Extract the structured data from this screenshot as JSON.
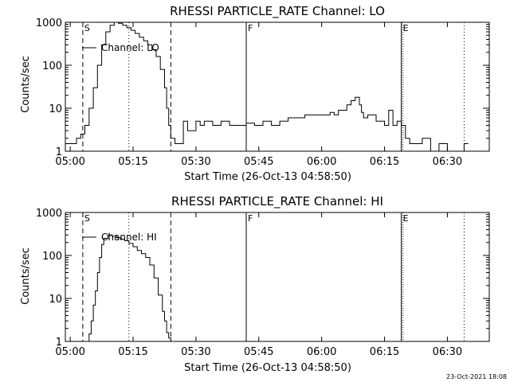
{
  "footer_stamp": "23-Oct-2021 18:08",
  "chart_data": [
    {
      "type": "line",
      "title": "RHESSI PARTICLE_RATE Channel: LO",
      "xlabel": "Start Time (26-Oct-13 04:58:50)",
      "ylabel": "Counts/sec",
      "ylog": true,
      "xlim": [
        "04:58:50",
        "06:40:00"
      ],
      "ylim": [
        1,
        1000
      ],
      "xticks": [
        "05:00",
        "05:15",
        "05:30",
        "05:45",
        "06:00",
        "06:15",
        "06:30"
      ],
      "yticks": [
        "1",
        "10",
        "100",
        "1000"
      ],
      "legend": "Channel: LO",
      "markers": [
        {
          "label": "S",
          "time": "05:03",
          "style": "dashed"
        },
        {
          "label": "",
          "time": "05:14",
          "style": "dotted"
        },
        {
          "label": "",
          "time": "05:24",
          "style": "dashed"
        },
        {
          "label": "F",
          "time": "05:42",
          "style": "solid"
        },
        {
          "label": "E",
          "time": "06:19",
          "style": "dotted-solid"
        },
        {
          "label": "",
          "time": "06:34",
          "style": "dotted"
        }
      ],
      "series": [
        {
          "name": "Channel: LO",
          "x": [
            "04:58:50",
            "05:00:00",
            "05:01:30",
            "05:02:30",
            "05:03:30",
            "05:04:30",
            "05:05:30",
            "05:06:30",
            "05:07:30",
            "05:08:30",
            "05:09:30",
            "05:10:30",
            "05:11:30",
            "05:12:30",
            "05:13:30",
            "05:14:30",
            "05:15:30",
            "05:16:30",
            "05:17:30",
            "05:18:30",
            "05:19:30",
            "05:20:30",
            "05:21:30",
            "05:22:30",
            "05:23:00",
            "05:23:30",
            "05:24:00",
            "05:24:30",
            "05:25:00",
            "05:26:00",
            "05:27:00",
            "05:28:00",
            "05:30:00",
            "05:31:00",
            "05:32:00",
            "05:34:00",
            "05:36:00",
            "05:38:00",
            "05:40:00",
            "05:42:00",
            "05:44:00",
            "05:46:00",
            "05:48:00",
            "05:50:00",
            "05:52:00",
            "05:54:00",
            "05:56:00",
            "05:58:00",
            "06:00:00",
            "06:02:00",
            "06:03:00",
            "06:04:00",
            "06:05:00",
            "06:06:00",
            "06:07:00",
            "06:08:00",
            "06:09:00",
            "06:09:30",
            "06:10:00",
            "06:11:00",
            "06:12:00",
            "06:13:00",
            "06:14:00",
            "06:15:00",
            "06:16:00",
            "06:17:00",
            "06:18:00",
            "06:19:00",
            "06:20:00",
            "06:21:00",
            "06:22:00",
            "06:24:00",
            "06:26:00",
            "06:28:00",
            "06:30:00",
            "06:32:00",
            "06:34:00",
            "06:35:00"
          ],
          "y": [
            1.5,
            1.5,
            2,
            2.5,
            4,
            10,
            30,
            100,
            300,
            600,
            850,
            1000,
            950,
            850,
            750,
            650,
            550,
            450,
            370,
            300,
            230,
            160,
            80,
            30,
            10,
            4,
            2,
            2,
            1.5,
            1.5,
            5,
            3,
            5,
            4,
            5,
            4,
            5,
            4,
            4,
            4.5,
            4,
            5,
            4,
            5,
            6,
            6,
            7,
            7,
            7,
            8,
            7,
            9,
            9,
            12,
            15,
            18,
            12,
            8,
            6,
            7,
            7,
            5,
            5,
            4,
            9,
            4,
            5,
            4,
            2,
            1.5,
            1.5,
            2,
            1,
            1.5,
            1,
            1,
            1.5,
            1.5
          ]
        }
      ]
    },
    {
      "type": "line",
      "title": "RHESSI PARTICLE_RATE Channel: HI",
      "xlabel": "Start Time (26-Oct-13 04:58:50)",
      "ylabel": "Counts/sec",
      "ylog": true,
      "xlim": [
        "04:58:50",
        "06:40:00"
      ],
      "ylim": [
        1,
        1000
      ],
      "xticks": [
        "05:00",
        "05:15",
        "05:30",
        "05:45",
        "06:00",
        "06:15",
        "06:30"
      ],
      "yticks": [
        "1",
        "10",
        "100",
        "1000"
      ],
      "legend": "Channel: HI",
      "markers": [
        {
          "label": "S",
          "time": "05:03",
          "style": "dashed"
        },
        {
          "label": "",
          "time": "05:14",
          "style": "dotted"
        },
        {
          "label": "",
          "time": "05:24",
          "style": "dashed"
        },
        {
          "label": "F",
          "time": "05:42",
          "style": "solid"
        },
        {
          "label": "E",
          "time": "06:19",
          "style": "dotted-solid"
        },
        {
          "label": "",
          "time": "06:34",
          "style": "dotted"
        }
      ],
      "series": [
        {
          "name": "Channel: HI",
          "x": [
            "05:04:00",
            "05:04:30",
            "05:05:00",
            "05:05:30",
            "05:06:00",
            "05:06:30",
            "05:07:00",
            "05:07:30",
            "05:08:00",
            "05:09:00",
            "05:10:00",
            "05:11:00",
            "05:12:00",
            "05:13:00",
            "05:14:00",
            "05:15:00",
            "05:16:00",
            "05:17:00",
            "05:18:00",
            "05:19:00",
            "05:20:00",
            "05:21:00",
            "05:22:00",
            "05:22:30",
            "05:23:00",
            "05:23:30",
            "05:24:00"
          ],
          "y": [
            1,
            1.5,
            3,
            7,
            15,
            40,
            90,
            180,
            250,
            300,
            280,
            260,
            240,
            220,
            190,
            160,
            130,
            110,
            90,
            60,
            30,
            12,
            5,
            3,
            1.6,
            1.2,
            1
          ]
        }
      ]
    }
  ]
}
